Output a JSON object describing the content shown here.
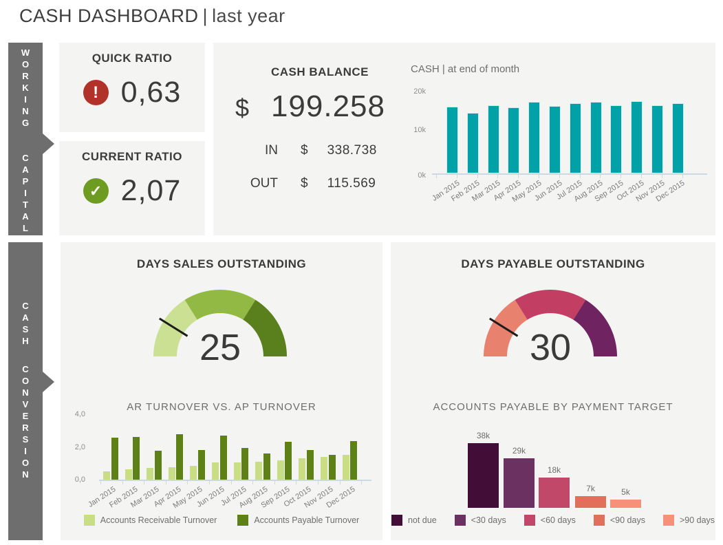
{
  "header": {
    "title_main": "CASH DASHBOARD",
    "title_sep": "|",
    "title_sub": "last year"
  },
  "colors": {
    "panel_bg": "#f4f4f2",
    "tab_gray": "#6e6e6e",
    "text_dark": "#3a3a3a",
    "text_gray": "#6e6e6e",
    "axis": "#ccd9e2",
    "teal": "#00a1a7",
    "alert_red": "#b13228",
    "ok_green": "#6e9b21"
  },
  "sidebar": {
    "tabs": [
      {
        "label": "WORKING CAPITAL",
        "word1": "WORKING",
        "word2": "CAPITAL"
      },
      {
        "label": "CASH CONVERSION",
        "word1": "CASH",
        "word2": "CONVERSION"
      }
    ]
  },
  "kpis": {
    "quick_ratio": {
      "title": "QUICK RATIO",
      "value": "0,63",
      "icon": "alert-icon",
      "icon_glyph": "!",
      "icon_color": "#b13228"
    },
    "current_ratio": {
      "title": "CURRENT RATIO",
      "value": "2,07",
      "icon": "check-icon",
      "icon_glyph": "✓",
      "icon_color": "#6e9b21"
    }
  },
  "cash_balance": {
    "title": "CASH BALANCE",
    "currency": "$",
    "value": "199.258",
    "rows": [
      {
        "label": "IN",
        "currency": "$",
        "value": "338.738"
      },
      {
        "label": "OUT",
        "currency": "$",
        "value": "115.569"
      }
    ]
  },
  "chart_data": [
    {
      "id": "cash_end_of_month",
      "type": "bar",
      "title": "CASH | at end of month",
      "categories": [
        "Jan 2015",
        "Feb 2015",
        "Mar 2015",
        "Apr 2015",
        "May 2015",
        "Jun 2015",
        "Jul 2015",
        "Aug 2015",
        "Sep 2015",
        "Oct 2015",
        "Nov 2015",
        "Dec 2015"
      ],
      "values": [
        16.3,
        14.8,
        16.7,
        16.2,
        17.4,
        16.5,
        17.2,
        17.4,
        16.7,
        17.6,
        16.7,
        17.2
      ],
      "unit": "k",
      "yticks": [
        "0k",
        "10k",
        "20k"
      ],
      "ylim": [
        0,
        20
      ],
      "bar_color": "#00a1a7",
      "grid": false,
      "legend_position": "none"
    },
    {
      "id": "days_sales_outstanding",
      "type": "gauge",
      "title": "DAYS SALES OUTSTANDING",
      "value": 25,
      "needle_deg": 148,
      "segments": [
        {
          "color": "#cbe093",
          "from_deg": 180,
          "to_deg": 122
        },
        {
          "color": "#92b944",
          "from_deg": 122,
          "to_deg": 58
        },
        {
          "color": "#5a7f1d",
          "from_deg": 58,
          "to_deg": 0
        }
      ]
    },
    {
      "id": "ar_vs_ap_turnover",
      "type": "grouped_bar",
      "title": "AR TURNOVER VS. AP TURNOVER",
      "categories": [
        "Jan 2015",
        "Feb 2015",
        "Mar 2015",
        "Apr 2015",
        "May 2015",
        "Jun 2015",
        "Jul 2015",
        "Aug 2015",
        "Sep 2015",
        "Oct 2015",
        "Nov 2015",
        "Dec 2015"
      ],
      "series": [
        {
          "name": "Accounts Receivable Turnover",
          "color": "#c9dd85",
          "values": [
            0.5,
            0.65,
            0.7,
            0.75,
            0.85,
            1.05,
            1.05,
            1.1,
            1.2,
            1.3,
            1.4,
            1.5
          ]
        },
        {
          "name": "Accounts Payable Turnover",
          "color": "#5d8117",
          "values": [
            2.55,
            2.6,
            1.75,
            2.8,
            1.8,
            2.7,
            1.95,
            1.6,
            2.3,
            1.8,
            1.5,
            2.35
          ]
        }
      ],
      "yticks": [
        "0,0",
        "2,0",
        "4,0"
      ],
      "ylim": [
        0,
        4
      ],
      "grid": false,
      "legend_position": "bottom"
    },
    {
      "id": "days_payable_outstanding",
      "type": "gauge",
      "title": "DAYS PAYABLE OUTSTANDING",
      "value": 30,
      "needle_deg": 148,
      "segments": [
        {
          "color": "#e8816d",
          "from_deg": 180,
          "to_deg": 122
        },
        {
          "color": "#c23f63",
          "from_deg": 122,
          "to_deg": 58
        },
        {
          "color": "#6f2360",
          "from_deg": 58,
          "to_deg": 0
        }
      ]
    },
    {
      "id": "accounts_payable_by_payment_target",
      "type": "bar",
      "title": "ACCOUNTS PAYABLE BY PAYMENT TARGET",
      "categories": [
        "not due",
        "<30 days",
        "<60 days",
        "<90 days",
        ">90 days"
      ],
      "values": [
        38,
        29,
        18,
        7,
        5
      ],
      "labels": [
        "38k",
        "29k",
        "18k",
        "7k",
        "5k"
      ],
      "colors": [
        "#420d37",
        "#6b3160",
        "#c14868",
        "#e0705a",
        "#f69078"
      ],
      "ylim": [
        0,
        40
      ],
      "grid": false,
      "legend_position": "bottom"
    }
  ]
}
